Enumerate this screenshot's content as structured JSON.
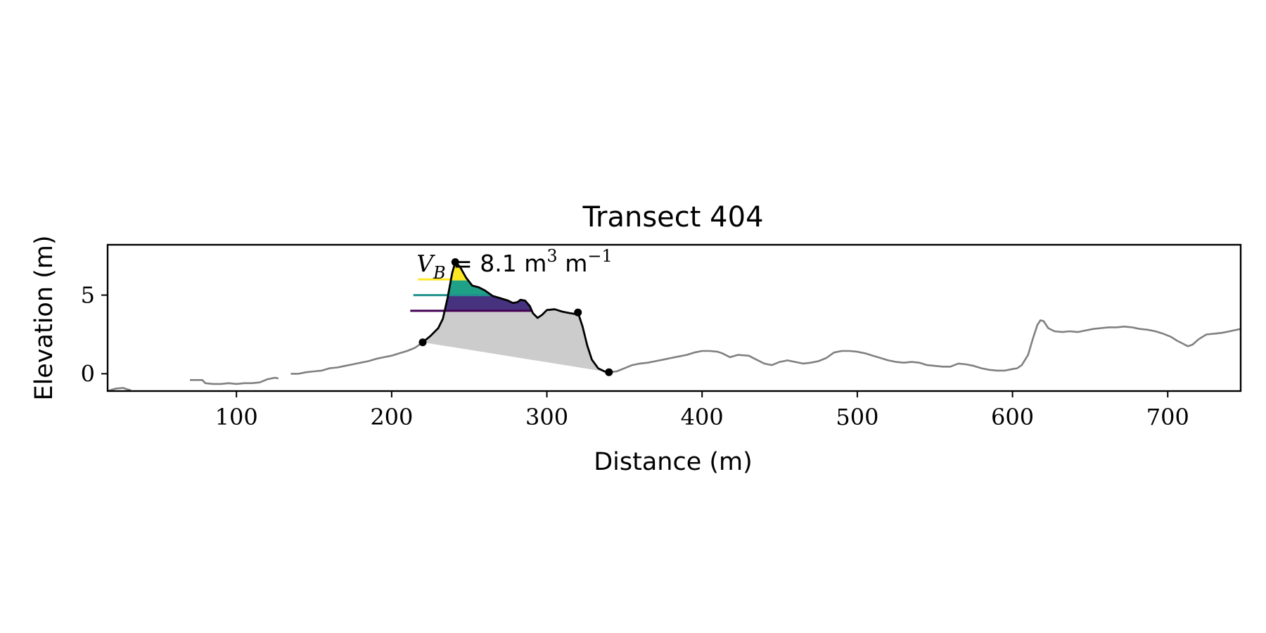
{
  "chart_data": {
    "type": "line",
    "title": "Transect 404",
    "xlabel": "Distance (m)",
    "ylabel": "Elevation (m)",
    "xlim": [
      17,
      747
    ],
    "ylim": [
      -1.1,
      8.2
    ],
    "xticks": [
      100,
      200,
      300,
      400,
      500,
      600,
      700
    ],
    "yticks": [
      0,
      5
    ],
    "grid": false,
    "annotation": {
      "sym_main": "V",
      "sym_sub": "B",
      "value_text": " = 8.1 m",
      "unit_sup1": "3",
      "unit_mid": " m",
      "unit_sup2": "−1",
      "x": 216,
      "y": 6.5
    },
    "profile_segments": [
      [
        [
          17,
          -1.1
        ],
        [
          22,
          -0.95
        ],
        [
          27,
          -0.9
        ],
        [
          30,
          -1.0
        ],
        [
          32,
          -1.05
        ]
      ],
      [
        [
          70,
          -0.4
        ],
        [
          74,
          -0.4
        ],
        [
          78,
          -0.4
        ],
        [
          80,
          -0.6
        ],
        [
          85,
          -0.65
        ],
        [
          90,
          -0.65
        ],
        [
          95,
          -0.6
        ],
        [
          100,
          -0.65
        ],
        [
          105,
          -0.6
        ],
        [
          110,
          -0.6
        ],
        [
          115,
          -0.55
        ],
        [
          120,
          -0.35
        ],
        [
          125,
          -0.25
        ],
        [
          127,
          -0.3
        ]
      ],
      [
        [
          135,
          0
        ],
        [
          140,
          0
        ],
        [
          145,
          0.1
        ],
        [
          150,
          0.15
        ],
        [
          155,
          0.2
        ],
        [
          160,
          0.35
        ],
        [
          165,
          0.4
        ],
        [
          170,
          0.5
        ],
        [
          175,
          0.6
        ],
        [
          180,
          0.7
        ],
        [
          185,
          0.8
        ],
        [
          190,
          0.95
        ],
        [
          195,
          1.05
        ],
        [
          200,
          1.15
        ],
        [
          205,
          1.3
        ],
        [
          210,
          1.45
        ],
        [
          215,
          1.65
        ],
        [
          220,
          2.0
        ]
      ],
      [
        [
          340,
          0.1
        ],
        [
          345,
          0.15
        ],
        [
          350,
          0.35
        ],
        [
          355,
          0.55
        ],
        [
          360,
          0.65
        ],
        [
          365,
          0.7
        ],
        [
          370,
          0.8
        ],
        [
          375,
          0.9
        ],
        [
          380,
          1.0
        ],
        [
          385,
          1.1
        ],
        [
          390,
          1.2
        ],
        [
          395,
          1.35
        ],
        [
          400,
          1.45
        ],
        [
          405,
          1.45
        ],
        [
          410,
          1.4
        ],
        [
          413,
          1.3
        ],
        [
          418,
          1.05
        ],
        [
          423,
          1.2
        ],
        [
          430,
          1.15
        ],
        [
          435,
          0.9
        ],
        [
          440,
          0.65
        ],
        [
          445,
          0.55
        ],
        [
          450,
          0.75
        ],
        [
          455,
          0.85
        ],
        [
          460,
          0.75
        ],
        [
          465,
          0.65
        ],
        [
          470,
          0.7
        ],
        [
          475,
          0.8
        ],
        [
          480,
          1.0
        ],
        [
          485,
          1.35
        ],
        [
          490,
          1.45
        ],
        [
          495,
          1.45
        ],
        [
          500,
          1.4
        ],
        [
          505,
          1.3
        ],
        [
          510,
          1.15
        ],
        [
          515,
          1.0
        ],
        [
          520,
          0.85
        ],
        [
          525,
          0.75
        ],
        [
          530,
          0.7
        ],
        [
          535,
          0.75
        ],
        [
          540,
          0.7
        ],
        [
          545,
          0.55
        ],
        [
          550,
          0.5
        ],
        [
          555,
          0.45
        ],
        [
          560,
          0.45
        ],
        [
          565,
          0.65
        ],
        [
          570,
          0.6
        ],
        [
          575,
          0.5
        ],
        [
          580,
          0.35
        ],
        [
          585,
          0.25
        ],
        [
          590,
          0.2
        ],
        [
          595,
          0.2
        ],
        [
          600,
          0.3
        ],
        [
          603,
          0.35
        ],
        [
          606,
          0.55
        ],
        [
          610,
          1.2
        ],
        [
          613,
          2.2
        ],
        [
          616,
          3.1
        ],
        [
          618,
          3.4
        ],
        [
          620,
          3.35
        ],
        [
          623,
          2.9
        ],
        [
          627,
          2.7
        ],
        [
          632,
          2.65
        ],
        [
          637,
          2.7
        ],
        [
          642,
          2.65
        ],
        [
          647,
          2.75
        ],
        [
          652,
          2.85
        ],
        [
          657,
          2.9
        ],
        [
          662,
          2.95
        ],
        [
          667,
          2.95
        ],
        [
          672,
          3.0
        ],
        [
          677,
          2.95
        ],
        [
          682,
          2.85
        ],
        [
          687,
          2.8
        ],
        [
          692,
          2.7
        ],
        [
          697,
          2.55
        ],
        [
          702,
          2.35
        ],
        [
          706,
          2.1
        ],
        [
          710,
          1.9
        ],
        [
          713,
          1.75
        ],
        [
          716,
          1.85
        ],
        [
          720,
          2.2
        ],
        [
          725,
          2.5
        ],
        [
          730,
          2.55
        ],
        [
          735,
          2.6
        ],
        [
          740,
          2.7
        ],
        [
          747,
          2.85
        ]
      ]
    ],
    "dune_profile": [
      [
        220,
        2.0
      ],
      [
        225,
        2.4
      ],
      [
        230,
        2.9
      ],
      [
        233,
        3.5
      ],
      [
        236,
        4.8
      ],
      [
        239,
        6.4
      ],
      [
        241,
        7.1
      ],
      [
        244,
        6.8
      ],
      [
        248,
        6.1
      ],
      [
        252,
        5.6
      ],
      [
        256,
        5.5
      ],
      [
        260,
        5.3
      ],
      [
        265,
        4.95
      ],
      [
        270,
        4.8
      ],
      [
        275,
        4.65
      ],
      [
        278,
        4.5
      ],
      [
        281,
        4.55
      ],
      [
        283,
        4.7
      ],
      [
        286,
        4.65
      ],
      [
        289,
        4.3
      ],
      [
        291,
        3.85
      ],
      [
        294,
        3.55
      ],
      [
        297,
        3.75
      ],
      [
        300,
        4.05
      ],
      [
        305,
        4.1
      ],
      [
        310,
        3.95
      ],
      [
        315,
        3.85
      ],
      [
        318,
        3.8
      ],
      [
        320,
        3.9
      ],
      [
        323,
        3.0
      ],
      [
        326,
        1.8
      ],
      [
        329,
        0.9
      ],
      [
        333,
        0.35
      ],
      [
        337,
        0.15
      ],
      [
        340,
        0.1
      ]
    ],
    "key_points": [
      {
        "name": "dune-toe",
        "x": 220,
        "y": 2.0
      },
      {
        "name": "dune-crest",
        "x": 241,
        "y": 7.1
      },
      {
        "name": "dune-heel",
        "x": 320,
        "y": 3.9
      },
      {
        "name": "back-toe",
        "x": 340,
        "y": 0.1
      }
    ],
    "fill_levels": [
      {
        "level": 4.0,
        "color": "#440154",
        "x_start": 212
      },
      {
        "level": 5.0,
        "color": "#21908c",
        "x_start": 214
      },
      {
        "level": 6.0,
        "color": "#fde725",
        "x_start": 217
      }
    ],
    "colors": {
      "profile": "#808080",
      "dune": "#000000",
      "volume_fill": "#cccccc",
      "level_bands": [
        "#46327e",
        "#1fa187",
        "#fde725"
      ]
    }
  }
}
